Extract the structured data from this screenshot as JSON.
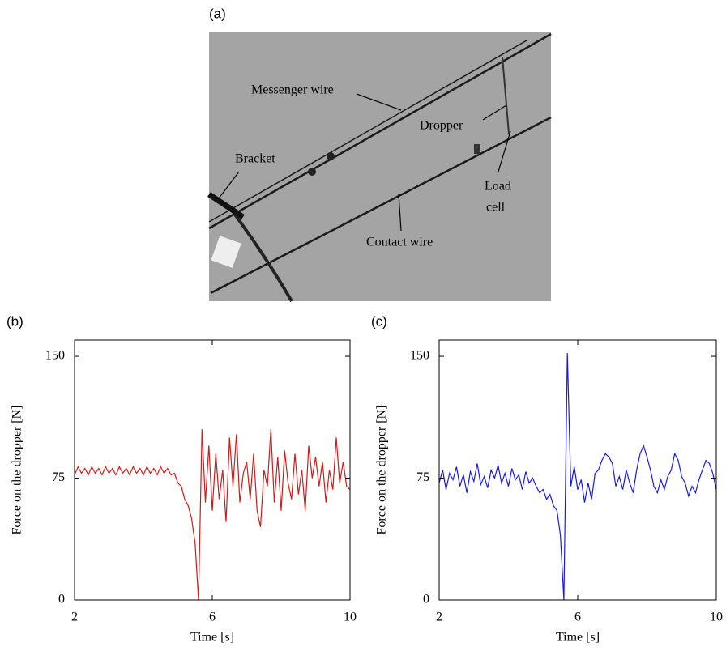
{
  "photo": {
    "panel_label": "(a)",
    "labels": {
      "messenger": "Messenger wire",
      "dropper": "Dropper",
      "bracket": "Bracket",
      "load_cell": [
        "Load",
        "cell"
      ],
      "contact": "Contact wire"
    }
  },
  "chart_data": [
    {
      "type": "line",
      "panel_label": "(b)",
      "xlabel": "Time [s]",
      "ylabel": "Force on the dropper [N]",
      "color": "#d11a1a",
      "xlim": [
        2,
        10
      ],
      "ylim": [
        0,
        160
      ],
      "xticks": [
        2,
        6,
        10
      ],
      "yticks": [
        0,
        75,
        150
      ],
      "x": [
        2.0,
        2.1,
        2.2,
        2.3,
        2.4,
        2.5,
        2.6,
        2.7,
        2.8,
        2.9,
        3.0,
        3.1,
        3.2,
        3.3,
        3.4,
        3.5,
        3.6,
        3.7,
        3.8,
        3.9,
        4.0,
        4.1,
        4.2,
        4.3,
        4.4,
        4.5,
        4.6,
        4.7,
        4.8,
        4.9,
        5.0,
        5.1,
        5.2,
        5.3,
        5.4,
        5.5,
        5.6,
        5.7,
        5.8,
        5.9,
        6.0,
        6.1,
        6.2,
        6.3,
        6.4,
        6.5,
        6.6,
        6.7,
        6.8,
        6.9,
        7.0,
        7.1,
        7.2,
        7.3,
        7.4,
        7.5,
        7.6,
        7.7,
        7.8,
        7.9,
        8.0,
        8.1,
        8.2,
        8.3,
        8.4,
        8.5,
        8.6,
        8.7,
        8.8,
        8.9,
        9.0,
        9.1,
        9.2,
        9.3,
        9.4,
        9.5,
        9.6,
        9.7,
        9.8,
        9.9,
        10.0
      ],
      "values": [
        77,
        82,
        78,
        81,
        77,
        82,
        78,
        81,
        77,
        82,
        78,
        81,
        77,
        82,
        78,
        81,
        77,
        82,
        78,
        81,
        77,
        82,
        78,
        81,
        77,
        82,
        78,
        81,
        77,
        78,
        72,
        70,
        62,
        58,
        50,
        35,
        0,
        105,
        60,
        95,
        55,
        90,
        62,
        80,
        48,
        100,
        70,
        102,
        60,
        78,
        85,
        62,
        90,
        55,
        45,
        80,
        70,
        105,
        60,
        88,
        55,
        92,
        72,
        62,
        90,
        65,
        80,
        55,
        95,
        75,
        88,
        70,
        85,
        60,
        80,
        68,
        100,
        72,
        85,
        70,
        68
      ]
    },
    {
      "type": "line",
      "panel_label": "(c)",
      "xlabel": "Time [s]",
      "ylabel": "Force on the dropper [N]",
      "color": "#1a1ae6",
      "xlim": [
        2,
        10
      ],
      "ylim": [
        0,
        160
      ],
      "xticks": [
        2,
        6,
        10
      ],
      "yticks": [
        0,
        75,
        150
      ],
      "x": [
        2.0,
        2.1,
        2.2,
        2.3,
        2.4,
        2.5,
        2.6,
        2.7,
        2.8,
        2.9,
        3.0,
        3.1,
        3.2,
        3.3,
        3.4,
        3.5,
        3.6,
        3.7,
        3.8,
        3.9,
        4.0,
        4.1,
        4.2,
        4.3,
        4.4,
        4.5,
        4.6,
        4.7,
        4.8,
        4.9,
        5.0,
        5.1,
        5.2,
        5.3,
        5.4,
        5.5,
        5.6,
        5.7,
        5.8,
        5.9,
        6.0,
        6.1,
        6.2,
        6.3,
        6.4,
        6.5,
        6.6,
        6.7,
        6.8,
        6.9,
        7.0,
        7.1,
        7.2,
        7.3,
        7.4,
        7.5,
        7.6,
        7.7,
        7.8,
        7.9,
        8.0,
        8.1,
        8.2,
        8.3,
        8.4,
        8.5,
        8.6,
        8.7,
        8.8,
        8.9,
        9.0,
        9.1,
        9.2,
        9.3,
        9.4,
        9.5,
        9.6,
        9.7,
        9.8,
        9.9,
        10.0
      ],
      "values": [
        72,
        80,
        68,
        78,
        74,
        82,
        70,
        77,
        66,
        79,
        73,
        84,
        71,
        76,
        69,
        80,
        75,
        83,
        72,
        78,
        70,
        81,
        74,
        77,
        68,
        79,
        72,
        75,
        70,
        66,
        68,
        62,
        65,
        58,
        55,
        40,
        0,
        152,
        70,
        82,
        68,
        74,
        60,
        72,
        62,
        78,
        80,
        86,
        90,
        88,
        84,
        70,
        76,
        68,
        80,
        72,
        66,
        80,
        90,
        95,
        88,
        80,
        70,
        66,
        74,
        68,
        76,
        80,
        90,
        86,
        76,
        72,
        64,
        70,
        66,
        74,
        80,
        86,
        84,
        78,
        68
      ]
    }
  ]
}
